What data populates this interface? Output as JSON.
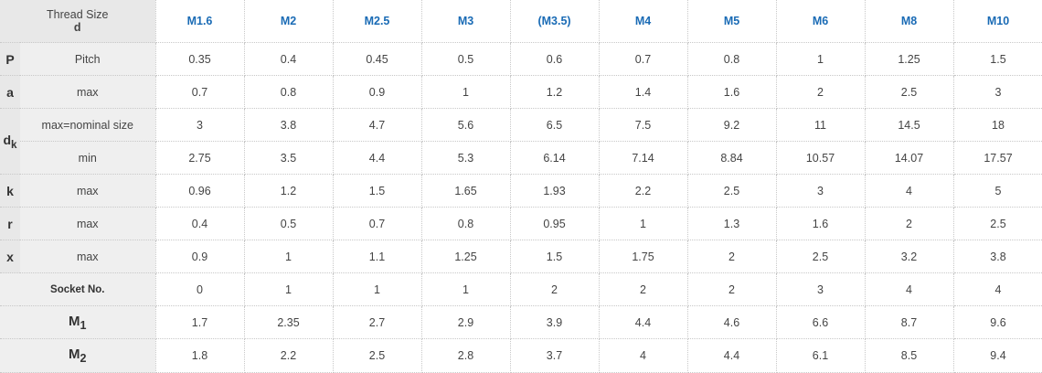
{
  "header": {
    "thread_size_label": "Thread Size",
    "d_label": "d",
    "sizes": [
      "M1.6",
      "M2",
      "M2.5",
      "M3",
      "(M3.5)",
      "M4",
      "M5",
      "M6",
      "M8",
      "M10"
    ]
  },
  "rows": [
    {
      "sym": "P",
      "sub": "",
      "label": "Pitch",
      "values": [
        "0.35",
        "0.4",
        "0.45",
        "0.5",
        "0.6",
        "0.7",
        "0.8",
        "1",
        "1.25",
        "1.5"
      ]
    },
    {
      "sym": "a",
      "sub": "",
      "label": "max",
      "values": [
        "0.7",
        "0.8",
        "0.9",
        "1",
        "1.2",
        "1.4",
        "1.6",
        "2",
        "2.5",
        "3"
      ]
    },
    {
      "sym": "d",
      "sub": "k",
      "label": "max=nominal size",
      "values": [
        "3",
        "3.8",
        "4.7",
        "5.6",
        "6.5",
        "7.5",
        "9.2",
        "11",
        "14.5",
        "18"
      ]
    },
    {
      "sym": "",
      "sub": "",
      "label": "min",
      "values": [
        "2.75",
        "3.5",
        "4.4",
        "5.3",
        "6.14",
        "7.14",
        "8.84",
        "10.57",
        "14.07",
        "17.57"
      ]
    },
    {
      "sym": "k",
      "sub": "",
      "label": "max",
      "values": [
        "0.96",
        "1.2",
        "1.5",
        "1.65",
        "1.93",
        "2.2",
        "2.5",
        "3",
        "4",
        "5"
      ]
    },
    {
      "sym": "r",
      "sub": "",
      "label": "max",
      "values": [
        "0.4",
        "0.5",
        "0.7",
        "0.8",
        "0.95",
        "1",
        "1.3",
        "1.6",
        "2",
        "2.5"
      ]
    },
    {
      "sym": "x",
      "sub": "",
      "label": "max",
      "values": [
        "0.9",
        "1",
        "1.1",
        "1.25",
        "1.5",
        "1.75",
        "2",
        "2.5",
        "3.2",
        "3.8"
      ]
    }
  ],
  "socket": {
    "label": "Socket No.",
    "values": [
      "0",
      "1",
      "1",
      "1",
      "2",
      "2",
      "2",
      "3",
      "4",
      "4"
    ]
  },
  "m1": {
    "sym": "M",
    "sub": "1",
    "values": [
      "1.7",
      "2.35",
      "2.7",
      "2.9",
      "3.9",
      "4.4",
      "4.6",
      "6.6",
      "8.7",
      "9.6"
    ]
  },
  "m2": {
    "sym": "M",
    "sub": "2",
    "values": [
      "1.8",
      "2.2",
      "2.5",
      "2.8",
      "3.7",
      "4",
      "4.4",
      "6.1",
      "8.5",
      "9.4"
    ]
  }
}
